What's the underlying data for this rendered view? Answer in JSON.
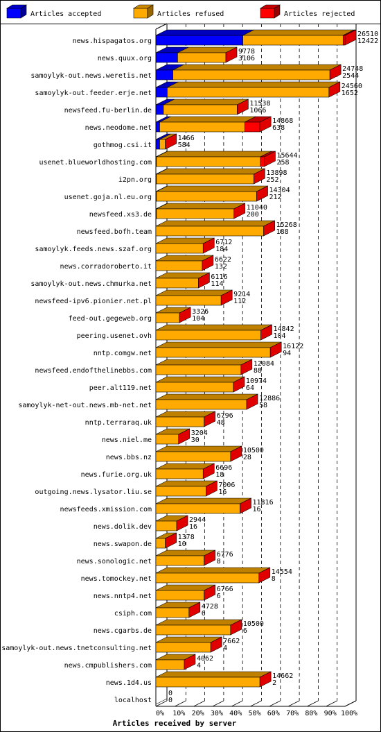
{
  "chart_data": {
    "type": "bar",
    "orientation": "horizontal",
    "stacked": true,
    "title": "",
    "xlabel": "Articles received by server",
    "ylabel": "",
    "xlim": [
      0,
      100
    ],
    "x_ticks": [
      "0%",
      "10%",
      "20%",
      "30%",
      "40%",
      "50%",
      "60%",
      "70%",
      "80%",
      "90%",
      "100%"
    ],
    "legend_position": "top",
    "series": [
      {
        "name": "Articles accepted",
        "color": "#0000ff"
      },
      {
        "name": "Articles refused",
        "color": "#ffaa00"
      },
      {
        "name": "Articles rejected",
        "color": "#ff0000"
      }
    ],
    "rows": [
      {
        "server": "news.hispagatos.org",
        "total": "26510",
        "rejected": "12422",
        "pct": [
          46,
          53,
          1
        ]
      },
      {
        "server": "news.quux.org",
        "total": "9778",
        "rejected": "3106",
        "pct": [
          11.5,
          25.5,
          0
        ]
      },
      {
        "server": "samoylyk-out.news.weretis.net",
        "total": "24748",
        "rejected": "2544",
        "pct": [
          9,
          83,
          0
        ]
      },
      {
        "server": "samoylyk-out.feeder.erje.net",
        "total": "24560",
        "rejected": "1652",
        "pct": [
          6,
          85.5,
          0
        ]
      },
      {
        "server": "newsfeed.fu-berlin.de",
        "total": "11538",
        "rejected": "1066",
        "pct": [
          4,
          39,
          0
        ]
      },
      {
        "server": "news.neodome.net",
        "total": "14868",
        "rejected": "638",
        "pct": [
          2,
          45,
          8
        ]
      },
      {
        "server": "gothmog.csi.it",
        "total": "1466",
        "rejected": "584",
        "pct": [
          2,
          3,
          0
        ]
      },
      {
        "server": "usenet.blueworldhosting.com",
        "total": "15644",
        "rejected": "258",
        "pct": [
          0.3,
          55,
          2
        ]
      },
      {
        "server": "i2pn.org",
        "total": "13898",
        "rejected": "252",
        "pct": [
          0.3,
          51.5,
          0
        ]
      },
      {
        "server": "usenet.goja.nl.eu.org",
        "total": "14304",
        "rejected": "212",
        "pct": [
          0.3,
          53,
          0
        ]
      },
      {
        "server": "newsfeed.xs3.de",
        "total": "11040",
        "rejected": "200",
        "pct": [
          0.3,
          41,
          0
        ]
      },
      {
        "server": "newsfeed.bofh.team",
        "total": "15268",
        "rejected": "188",
        "pct": [
          0,
          57,
          0
        ]
      },
      {
        "server": "samoylyk.feeds.news.szaf.org",
        "total": "6712",
        "rejected": "184",
        "pct": [
          0,
          25,
          0
        ]
      },
      {
        "server": "news.corradoroberto.it",
        "total": "6622",
        "rejected": "132",
        "pct": [
          0,
          24.5,
          0
        ]
      },
      {
        "server": "samoylyk-out.news.chmurka.net",
        "total": "6116",
        "rejected": "114",
        "pct": [
          0,
          22.5,
          0
        ]
      },
      {
        "server": "newsfeed-ipv6.pionier.net.pl",
        "total": "9214",
        "rejected": "112",
        "pct": [
          0,
          34.5,
          0
        ]
      },
      {
        "server": "feed-out.gegeweb.org",
        "total": "3326",
        "rejected": "104",
        "pct": [
          0,
          12.5,
          0
        ]
      },
      {
        "server": "peering.usenet.ovh",
        "total": "14842",
        "rejected": "104",
        "pct": [
          0,
          55.5,
          0
        ]
      },
      {
        "server": "nntp.comgw.net",
        "total": "16122",
        "rejected": "94",
        "pct": [
          0,
          60.5,
          0
        ]
      },
      {
        "server": "newsfeed.endofthelinebbs.com",
        "total": "12084",
        "rejected": "88",
        "pct": [
          0,
          45,
          0
        ]
      },
      {
        "server": "peer.alt119.net",
        "total": "10974",
        "rejected": "64",
        "pct": [
          0,
          41,
          0
        ]
      },
      {
        "server": "samoylyk-net-out.news.mb-net.net",
        "total": "12886",
        "rejected": "58",
        "pct": [
          0,
          48,
          0
        ]
      },
      {
        "server": "nntp.terraraq.uk",
        "total": "6796",
        "rejected": "48",
        "pct": [
          0,
          25.5,
          0
        ]
      },
      {
        "server": "news.niel.me",
        "total": "3204",
        "rejected": "30",
        "pct": [
          0,
          12,
          0
        ]
      },
      {
        "server": "news.bbs.nz",
        "total": "10500",
        "rejected": "28",
        "pct": [
          0,
          39.5,
          0
        ]
      },
      {
        "server": "news.furie.org.uk",
        "total": "6696",
        "rejected": "18",
        "pct": [
          0,
          25,
          0
        ]
      },
      {
        "server": "outgoing.news.lysator.liu.se",
        "total": "7006",
        "rejected": "16",
        "pct": [
          0,
          26.5,
          0
        ]
      },
      {
        "server": "newsfeeds.xmission.com",
        "total": "11816",
        "rejected": "16",
        "pct": [
          0,
          44.5,
          0
        ]
      },
      {
        "server": "news.dolik.dev",
        "total": "2944",
        "rejected": "16",
        "pct": [
          0,
          11,
          0
        ]
      },
      {
        "server": "news.swapon.de",
        "total": "1378",
        "rejected": "10",
        "pct": [
          0,
          5,
          0
        ]
      },
      {
        "server": "news.sonologic.net",
        "total": "6776",
        "rejected": "8",
        "pct": [
          0,
          25.5,
          0
        ]
      },
      {
        "server": "news.tomockey.net",
        "total": "14554",
        "rejected": "8",
        "pct": [
          0,
          54.5,
          0
        ]
      },
      {
        "server": "news.nntp4.net",
        "total": "6766",
        "rejected": "6",
        "pct": [
          0,
          25.5,
          0
        ]
      },
      {
        "server": "csiph.com",
        "total": "4728",
        "rejected": "6",
        "pct": [
          0,
          17.5,
          0
        ]
      },
      {
        "server": "news.cgarbs.de",
        "total": "10500",
        "rejected": "6",
        "pct": [
          0,
          39.5,
          0
        ]
      },
      {
        "server": "samoylyk-out.news.tnetconsulting.net",
        "total": "7662",
        "rejected": "4",
        "pct": [
          0,
          29,
          0
        ]
      },
      {
        "server": "news.cmpublishers.com",
        "total": "4062",
        "rejected": "4",
        "pct": [
          0,
          15,
          0
        ]
      },
      {
        "server": "news.1d4.us",
        "total": "14662",
        "rejected": "2",
        "pct": [
          0,
          55,
          0
        ]
      },
      {
        "server": "localhost",
        "total": "0",
        "rejected": "0",
        "pct": [
          0,
          0,
          0
        ]
      }
    ]
  }
}
